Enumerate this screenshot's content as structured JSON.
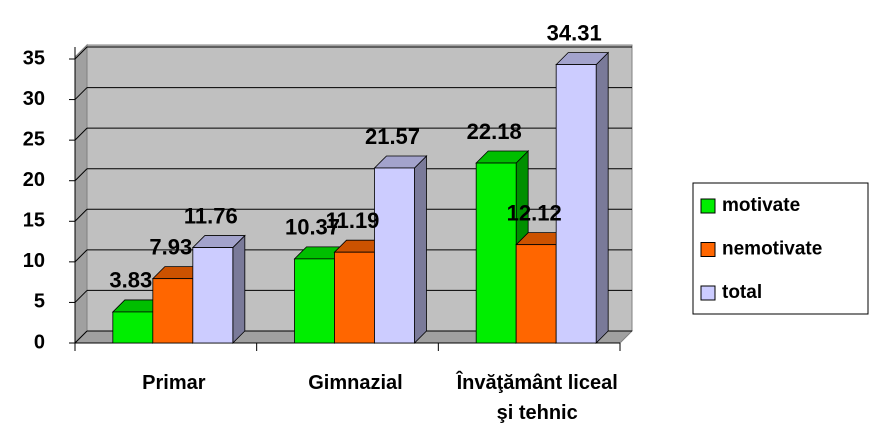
{
  "chart_data": {
    "type": "bar3d",
    "categories": [
      "Primar",
      "Gimnazial",
      "Învăţământ liceal şi tehnic"
    ],
    "series": [
      {
        "name": "motivate",
        "color": "#00ee00",
        "values": [
          3.83,
          10.37,
          22.18
        ]
      },
      {
        "name": "nemotivate",
        "color": "#ff6600",
        "values": [
          7.93,
          11.19,
          12.12
        ]
      },
      {
        "name": "total",
        "color": "#ccccff",
        "values": [
          11.76,
          21.57,
          34.31
        ]
      }
    ],
    "ylim": [
      0,
      35
    ],
    "yticks": [
      0,
      5,
      10,
      15,
      20,
      25,
      30,
      35
    ],
    "grid": true,
    "legend": "right"
  }
}
